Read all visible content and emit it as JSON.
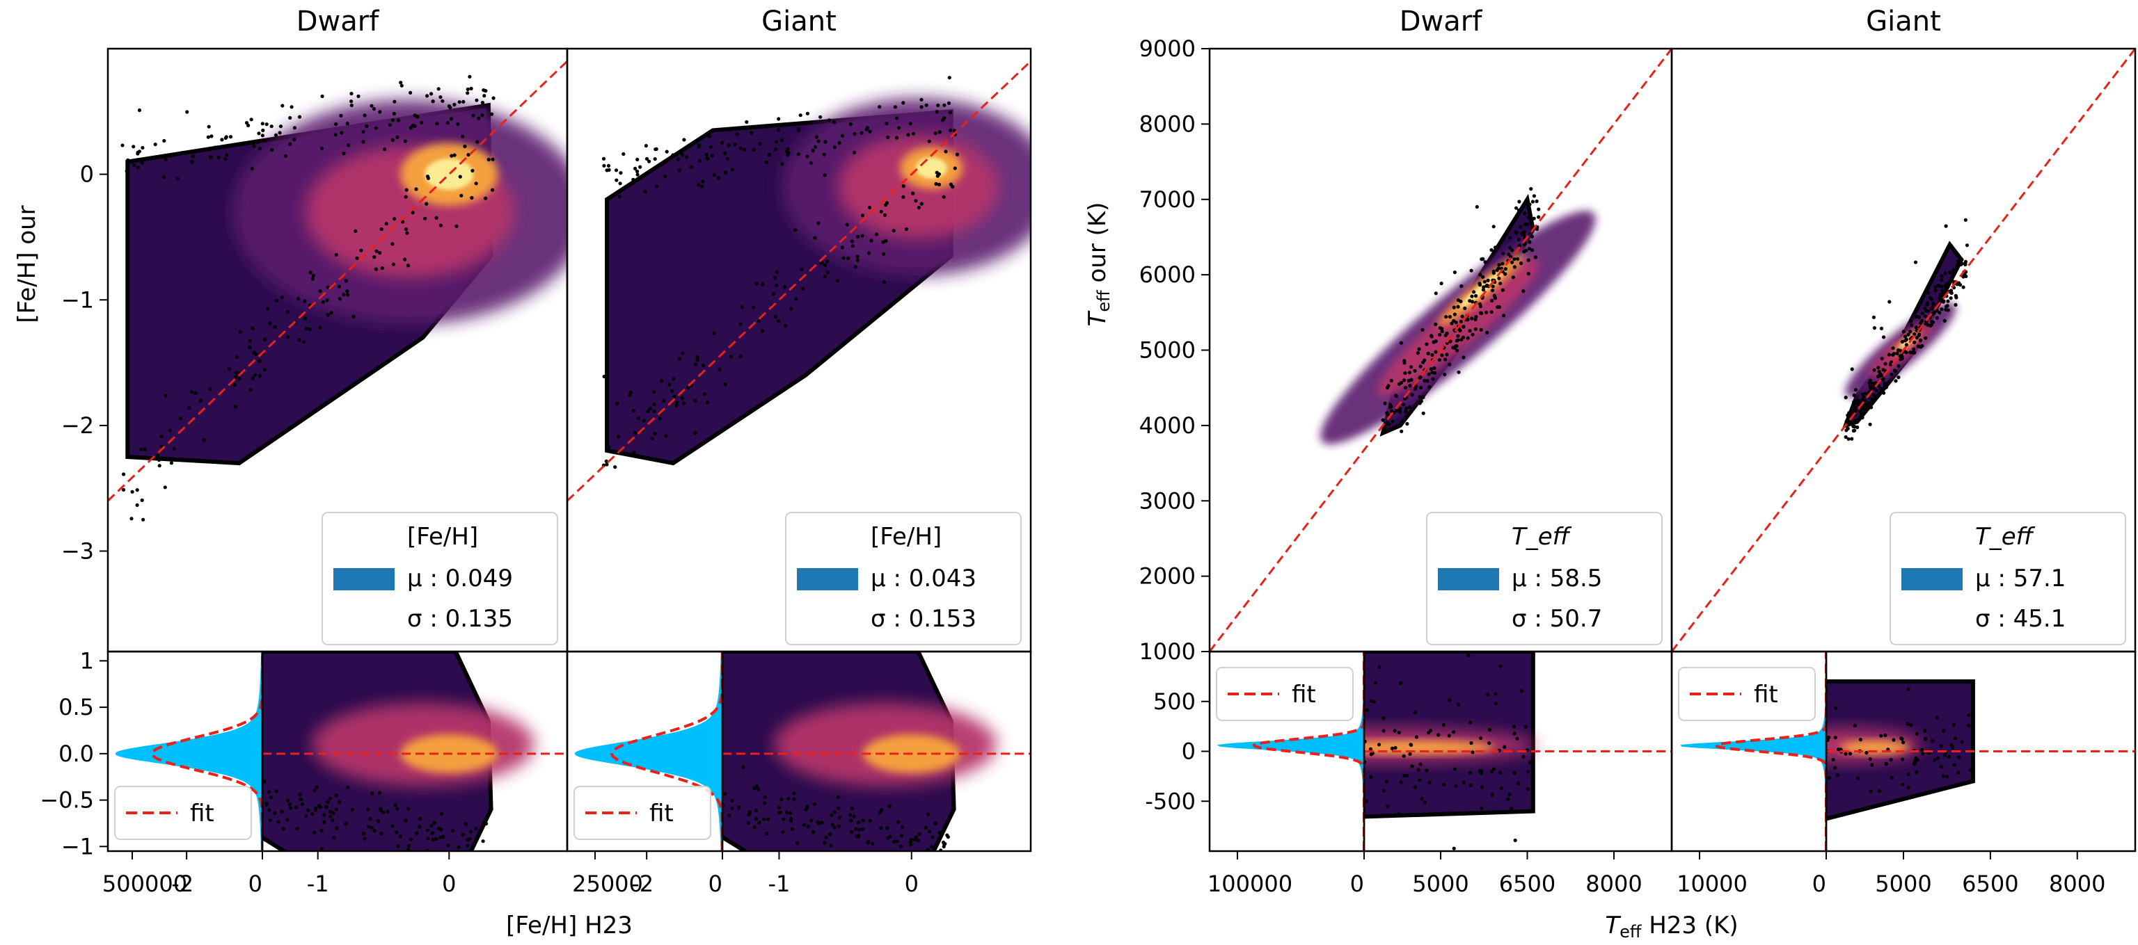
{
  "chart_data": [
    {
      "type": "hexbin-scatter",
      "quantity": "[Fe/H]",
      "xlabel": "[Fe/H] H23",
      "ylabel": "[Fe/H] our",
      "main_xlim": [
        -2.6,
        0.9
      ],
      "main_ylim": [
        -3.8,
        1.0
      ],
      "main_yticks": [
        -3,
        -2,
        -1,
        0
      ],
      "main_ytick_labels": [
        "−3",
        "−2",
        "−1",
        "0"
      ],
      "resid_ylim": [
        -1.05,
        1.1
      ],
      "resid_yticks": [
        1,
        0.5,
        0.0,
        -0.5,
        -1
      ],
      "resid_ytick_labels": [
        "1",
        "0.5",
        "0.0",
        "−0.5",
        "−1"
      ],
      "scatter_xticks": [
        -2,
        -1,
        0
      ],
      "scatter_xtick_labels": [
        "-2",
        "-1",
        "0"
      ],
      "reference_line": "y = x",
      "panels": [
        {
          "title": "Dwarf",
          "legend": {
            "label": "[Fe/H]",
            "mu": "μ : 0.049",
            "sigma": "σ : 0.135"
          },
          "mu": 0.049,
          "sigma": 0.135,
          "hist_count_max": 500000,
          "hist_xtick_labels": [
            "500000",
            "0"
          ],
          "fit_label": "fit"
        },
        {
          "title": "Giant",
          "legend": {
            "label": "[Fe/H]",
            "mu": "μ : 0.043",
            "sigma": "σ : 0.153"
          },
          "mu": 0.043,
          "sigma": 0.153,
          "hist_count_max": 25000,
          "hist_xtick_labels": [
            "25000",
            "0"
          ],
          "fit_label": "fit"
        }
      ]
    },
    {
      "type": "hexbin-scatter",
      "quantity": "T_eff",
      "xlabel": "T_eff H23 (K)",
      "ylabel": "T_eff our (K)",
      "main_xlim": [
        1000,
        9000
      ],
      "main_ylim": [
        1000,
        9000
      ],
      "main_yticks": [
        1000,
        2000,
        3000,
        4000,
        5000,
        6000,
        7000,
        8000,
        9000
      ],
      "main_ytick_labels": [
        "1000",
        "2000",
        "3000",
        "4000",
        "5000",
        "6000",
        "7000",
        "8000",
        "9000"
      ],
      "resid_ylim": [
        -1000,
        1000
      ],
      "resid_yticks": [
        500,
        0,
        -500
      ],
      "resid_ytick_labels": [
        "500",
        "0",
        "-500"
      ],
      "scatter_xticks": [
        5000,
        6500,
        8000
      ],
      "scatter_xtick_labels": [
        "5000",
        "6500",
        "8000"
      ],
      "reference_line": "y = x",
      "panels": [
        {
          "title": "Dwarf",
          "legend": {
            "label": "T_eff",
            "mu": "μ : 58.5",
            "sigma": "σ : 50.7"
          },
          "mu": 58.5,
          "sigma": 50.7,
          "hist_count_max": 100000,
          "hist_xtick_labels": [
            "100000",
            "0"
          ],
          "fit_label": "fit"
        },
        {
          "title": "Giant",
          "legend": {
            "label": "T_eff",
            "mu": "μ : 57.1",
            "sigma": "σ : 45.1"
          },
          "mu": 57.1,
          "sigma": 45.1,
          "hist_count_max": 10000,
          "hist_xtick_labels": [
            "10000",
            "0"
          ],
          "fit_label": "fit"
        }
      ]
    }
  ],
  "colors": {
    "reference_line": "#e8211a",
    "legend_patch": "#1f77b4",
    "histogram": "#00bfff",
    "points": "#000000",
    "inferno_low": "#2c0b4e",
    "inferno_mid": "#b5356b",
    "inferno_high": "#fcf59e"
  }
}
